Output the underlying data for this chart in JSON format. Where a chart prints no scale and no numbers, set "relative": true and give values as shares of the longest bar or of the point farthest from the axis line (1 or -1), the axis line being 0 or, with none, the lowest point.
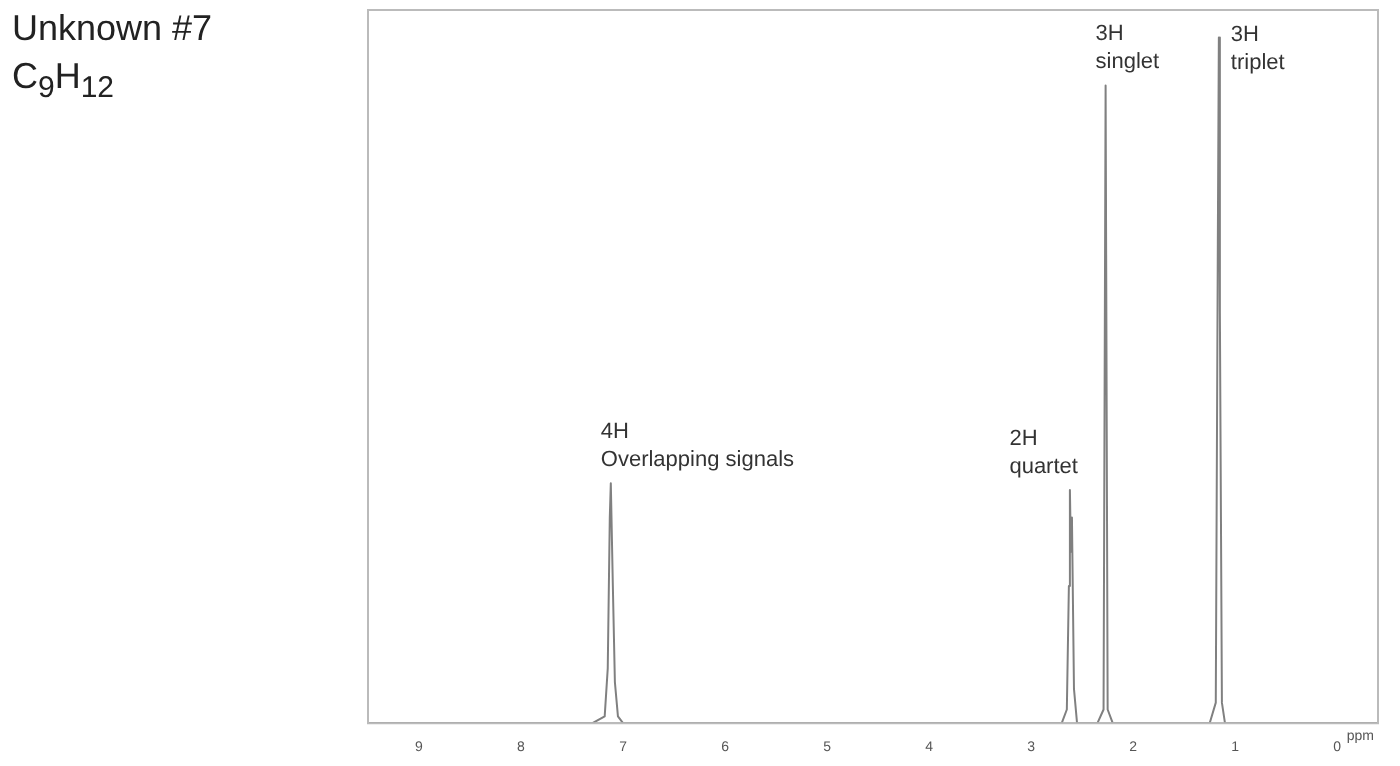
{
  "chart_data": {
    "type": "line",
    "title": "Unknown #7",
    "subtitle": "C$_{9}$H$_{12}$",
    "xlabel": "ppm",
    "relative": true,
    "tick_labels": "x",
    "legend": false,
    "grid": false,
    "marker": "none",
    "line_style": "solid",
    "xlim": [
      9.5,
      -0.4
    ],
    "xticks": [
      9,
      8,
      7,
      6,
      5,
      4,
      3,
      2,
      1,
      0
    ],
    "series": [
      {
        "color": "#808080",
        "x": [
          9.5,
          7.3,
          7.18,
          7.15,
          7.13,
          7.12,
          7.1,
          7.08,
          7.05,
          7.0,
          2.7,
          2.65,
          2.63,
          2.62,
          2.61,
          2.6,
          2.58,
          2.55,
          2.35,
          2.29,
          2.27,
          2.25,
          2.2,
          1.25,
          1.19,
          1.17,
          1.16,
          1.15,
          1.13,
          1.1,
          -0.4
        ],
        "values": [
          0,
          0,
          0.01,
          0.08,
          0.3,
          0.35,
          0.2,
          0.06,
          0.01,
          0,
          0,
          0.02,
          0.2,
          0.34,
          0.25,
          0.3,
          0.05,
          0,
          0,
          0.02,
          0.93,
          0.02,
          0,
          0,
          0.03,
          0.7,
          1,
          0.6,
          0.03,
          0,
          0
        ]
      }
    ],
    "annotations": [
      {
        "text": "4H\nOverlapping signals",
        "x": 7.12,
        "y": 0.35
      },
      {
        "text": "2H\nquartet",
        "x": 2.62,
        "y": 0.34
      },
      {
        "text": "3H\nsinglet",
        "x": 2.27,
        "y": 0.93
      },
      {
        "text": "3H\ntriplet",
        "x": 1.16,
        "y": 1
      }
    ]
  }
}
